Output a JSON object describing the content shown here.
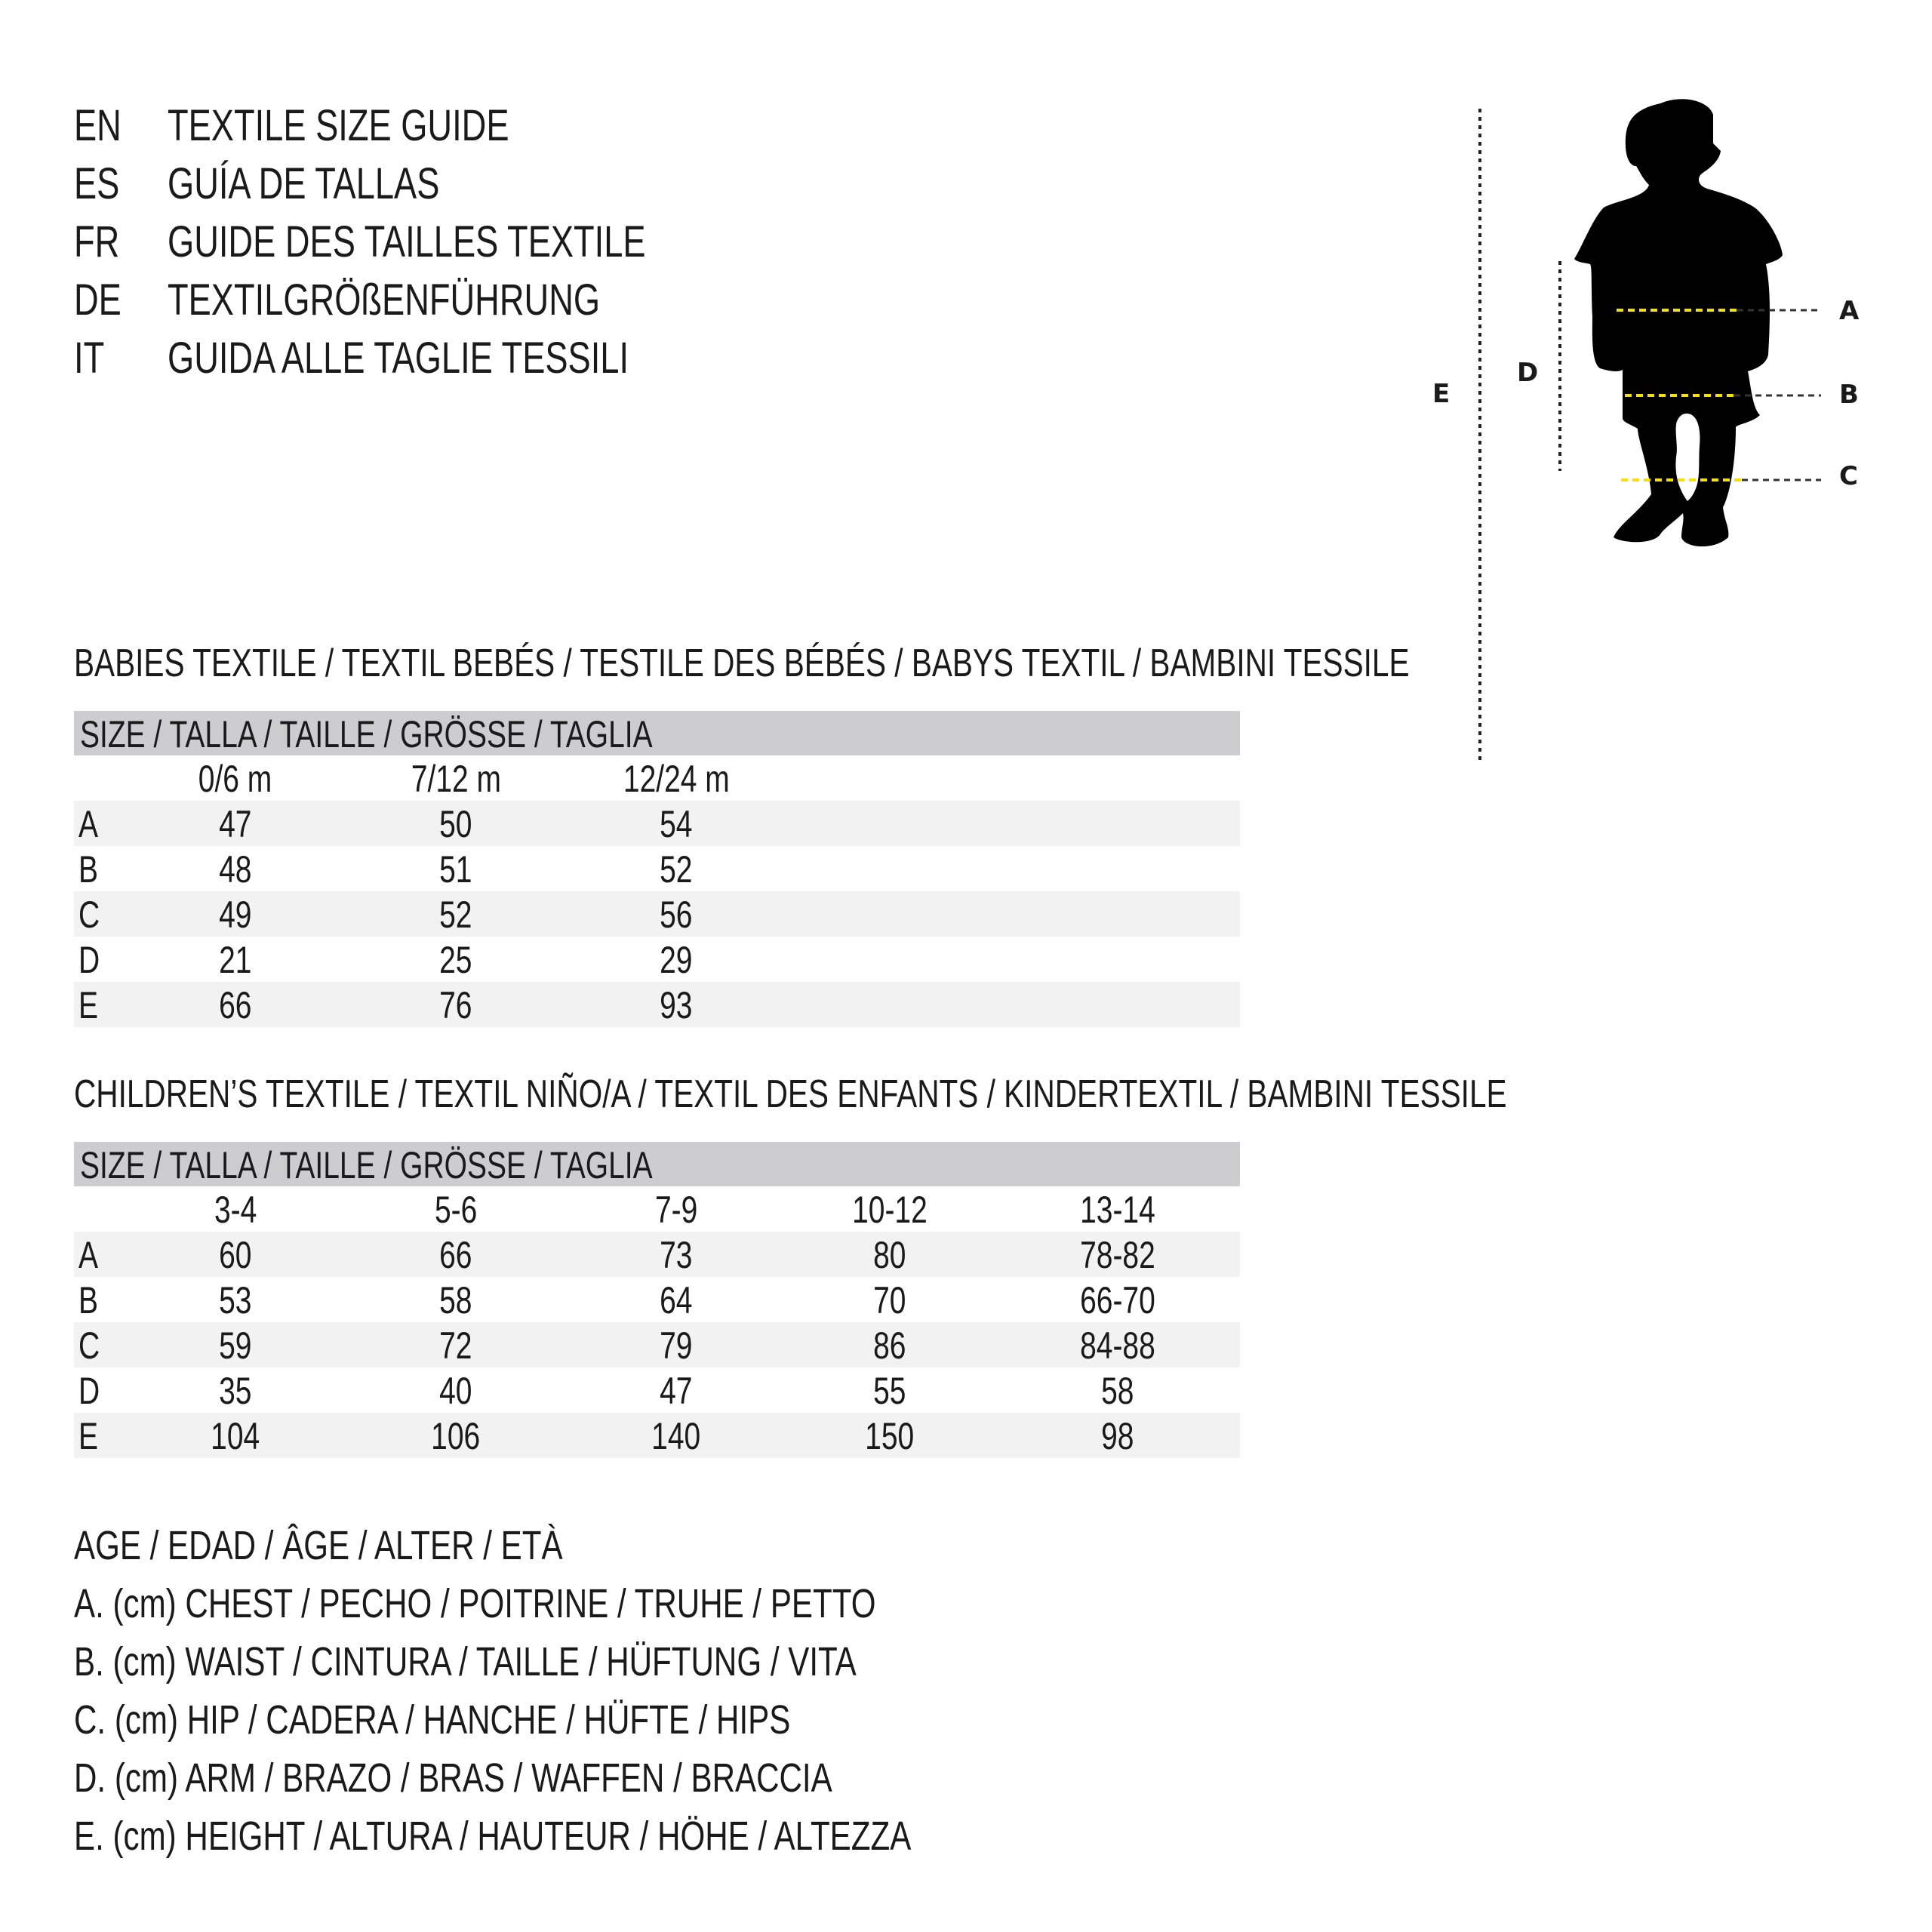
{
  "headings": [
    {
      "code": "EN",
      "text": "TEXTILE SIZE GUIDE"
    },
    {
      "code": "ES",
      "text": "GUÍA DE TALLAS"
    },
    {
      "code": "FR",
      "text": "GUIDE DES TAILLES TEXTILE"
    },
    {
      "code": "DE",
      "text": "TEXTILGRÖßENFÜHRUNG"
    },
    {
      "code": "IT",
      "text": "GUIDA ALLE TAGLIE TESSILI"
    }
  ],
  "babies": {
    "title": "BABIES TEXTILE / TEXTIL BEBÉS / TESTILE DES BÉBÉS / BABYS TEXTIL / BAMBINI TESSILE",
    "header": "SIZE / TALLA / TAILLE / GRÖSSE / TAGLIA",
    "columns": [
      "0/6 m",
      "7/12 m",
      "12/24 m"
    ],
    "rows": [
      {
        "label": "A",
        "values": [
          "47",
          "50",
          "54"
        ]
      },
      {
        "label": "B",
        "values": [
          "48",
          "51",
          "52"
        ]
      },
      {
        "label": "C",
        "values": [
          "49",
          "52",
          "56"
        ]
      },
      {
        "label": "D",
        "values": [
          "21",
          "25",
          "29"
        ]
      },
      {
        "label": "E",
        "values": [
          "66",
          "76",
          "93"
        ]
      }
    ]
  },
  "children": {
    "title": "CHILDREN’S TEXTILE / TEXTIL NIÑO/A / TEXTIL DES ENFANTS / KINDERTEXTIL / BAMBINI TESSILE",
    "header": "SIZE / TALLA / TAILLE / GRÖSSE / TAGLIA",
    "columns": [
      "3-4",
      "5-6",
      "7-9",
      "10-12",
      "13-14"
    ],
    "rows": [
      {
        "label": "A",
        "values": [
          "60",
          "66",
          "73",
          "80",
          "78-82"
        ]
      },
      {
        "label": "B",
        "values": [
          "53",
          "58",
          "64",
          "70",
          "66-70"
        ]
      },
      {
        "label": "C",
        "values": [
          "59",
          "72",
          "79",
          "86",
          "84-88"
        ]
      },
      {
        "label": "D",
        "values": [
          "35",
          "40",
          "47",
          "55",
          "58"
        ]
      },
      {
        "label": "E",
        "values": [
          "104",
          "106",
          "140",
          "150",
          "98"
        ]
      }
    ]
  },
  "legend": [
    "AGE / EDAD / ÂGE / ALTER / ETÀ",
    "A. (cm) CHEST / PECHO / POITRINE / TRUHE / PETTO",
    "B. (cm) WAIST / CINTURA / TAILLE / HÜFTUNG / VITA",
    "C. (cm) HIP / CADERA / HANCHE / HÜFTE / HIPS",
    "D. (cm) ARM / BRAZO / BRAS / WAFFEN / BRACCIA",
    "E. (cm) HEIGHT / ALTURA / HAUTEUR / HÖHE / ALTEZZA"
  ],
  "figure": {
    "labels": {
      "A": "A",
      "B": "B",
      "C": "C",
      "D": "D",
      "E": "E"
    },
    "measure_color": "#f2e20a",
    "silhouette_color": "#000000"
  }
}
